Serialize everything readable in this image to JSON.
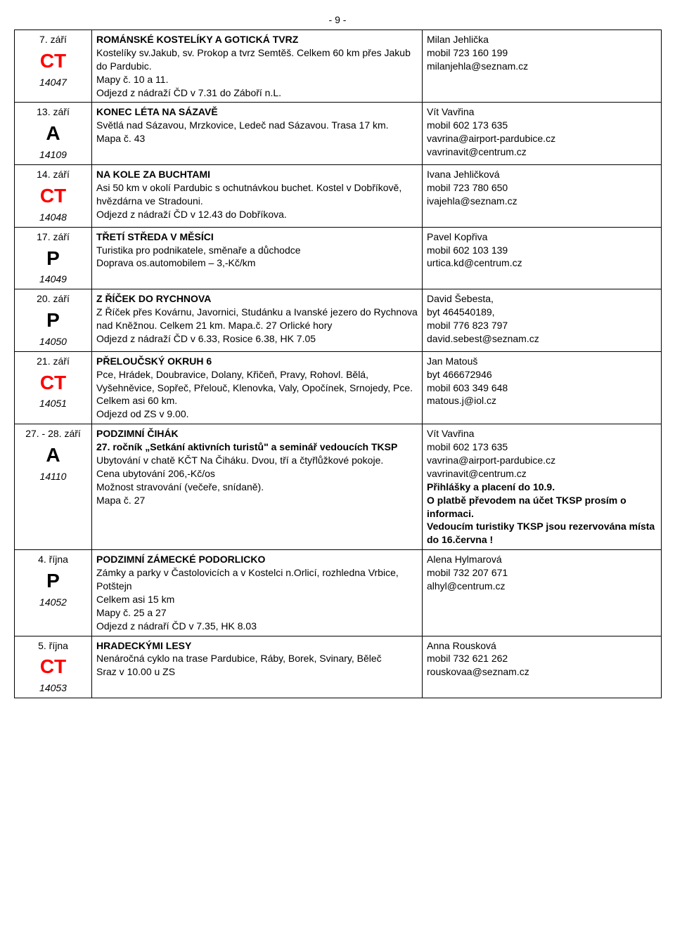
{
  "page_number": "- 9 -",
  "columns": {
    "date_width": 110,
    "desc_width": 470,
    "contact_width": 340
  },
  "colors": {
    "code_red": "#ff0000",
    "code_black": "#000000",
    "border": "#000000",
    "text": "#000000",
    "bg": "#ffffff"
  },
  "rows": [
    {
      "date": "7. září",
      "code": "CT",
      "code_color": "#ff0000",
      "id": "14047",
      "title": "ROMÁNSKÉ KOSTELÍKY A GOTICKÁ TVRZ",
      "desc": "Kostelíky sv.Jakub, sv. Prokop a tvrz Semtěš. Celkem 60 km přes Jakub do Pardubic.\nMapy č. 10 a 11.\nOdjezd z nádraží ČD v 7.31 do Záboří n.L.",
      "contact": "Milan Jehlička\nmobil 723 160 199\nmilanjehla@seznam.cz"
    },
    {
      "date": "13. září",
      "code": "A",
      "code_color": "#000000",
      "id": "14109",
      "title": "KONEC LÉTA NA SÁZAVĚ",
      "desc": "Světlá nad Sázavou, Mrzkovice, Ledeč nad Sázavou. Trasa 17 km.\nMapa č. 43",
      "contact": "Vít Vavřina\nmobil 602 173 635\nvavrina@airport-pardubice.cz\nvavrinavit@centrum.cz"
    },
    {
      "date": "14. září",
      "code": "CT",
      "code_color": "#ff0000",
      "id": "14048",
      "title": "NA KOLE ZA BUCHTAMI",
      "desc": "Asi 50 km v okolí Pardubic s ochutnávkou buchet. Kostel v Dobříkově, hvězdárna ve Stradouni.\nOdjezd z nádraží ČD v 12.43 do Dobříkova.",
      "contact": "Ivana Jehličková\nmobil 723 780 650\nivajehla@seznam.cz"
    },
    {
      "date": "17. září",
      "code": "P",
      "code_color": "#000000",
      "id": "14049",
      "title": "TŘETÍ STŘEDA V MĚSÍCI",
      "desc": "Turistika pro podnikatele, směnaře a důchodce\nDoprava os.automobilem – 3,-Kč/km",
      "contact": "Pavel Kopřiva\nmobil 602 103 139\nurtica.kd@centrum.cz"
    },
    {
      "date": "20. září",
      "code": "P",
      "code_color": "#000000",
      "id": "14050",
      "title": "Z ŘÍČEK DO RYCHNOVA",
      "desc": "Z Říček přes Kovárnu, Javornici, Studánku a Ivanské jezero do Rychnova nad Kněžnou. Celkem 21 km. Mapa.č. 27 Orlické hory\nOdjezd z nádraží ČD v 6.33, Rosice 6.38, HK 7.05",
      "contact": "David Šebesta,\nbyt 464540189,\nmobil 776 823 797\ndavid.sebest@seznam.cz"
    },
    {
      "date": "21. září",
      "code": "CT",
      "code_color": "#ff0000",
      "id": "14051",
      "title": "PŘELOUČSKÝ OKRUH 6",
      "desc": "Pce, Hrádek, Doubravice, Dolany, Křičeň, Pravy, Rohovl. Bělá, Vyšehněvice, Sopřeč, Přelouč, Klenovka, Valy, Opočínek, Srnojedy, Pce. Celkem  asi 60 km.\nOdjezd od ZS v 9.00.",
      "contact": "Jan Matouš\nbyt 466672946\nmobil 603 349 648\nmatous.j@iol.cz"
    },
    {
      "date": "27. - 28. září",
      "code": "A",
      "code_color": "#000000",
      "id": "14110",
      "title": "PODZIMNÍ ČIHÁK",
      "desc_html": "<span class='bold'>27. ročník „Setkání aktivních turistů\" a seminář vedoucích TKSP</span><br>Ubytování v chatě KČT Na Čiháku. Dvou, tří a čtyřlůžkové pokoje.<br>Cena ubytování 206,-Kč/os<br>Možnost stravování (večeře, snídaně).<br>Mapa č. 27",
      "contact_html": "Vít Vavřina<br>mobil 602 173 635<br>vavrina@airport-pardubice.cz<br>vavrinavit@centrum.cz<br><span class='bold'>Přihlášky a placení do 10.9.<br>O platbě převodem na účet TKSP prosím o informaci.<br>Vedoucím turistiky TKSP jsou rezervována místa do 16.června !</span>"
    },
    {
      "date": "4. října",
      "code": "P",
      "code_color": "#000000",
      "id": "14052",
      "title": "PODZIMNÍ ZÁMECKÉ PODORLICKO",
      "desc": "Zámky a parky v Častolovicích a v Kostelci n.Orlicí, rozhledna Vrbice, Potštejn\nCelkem asi 15 km\nMapy č. 25 a 27\nOdjezd z nádraří ČD v 7.35, HK 8.03",
      "contact": "Alena Hylmarová\nmobil 732 207 671\nalhyl@centrum.cz"
    },
    {
      "date": "5. října",
      "code": "CT",
      "code_color": "#ff0000",
      "id": "14053",
      "title": "HRADECKÝMI LESY",
      "desc": "Nenáročná cyklo na trase Pardubice, Ráby, Borek, Svinary, Běleč\nSraz v 10.00 u ZS",
      "contact": "Anna Rousková\nmobil 732 621 262\nrouskovaa@seznam.cz"
    }
  ]
}
